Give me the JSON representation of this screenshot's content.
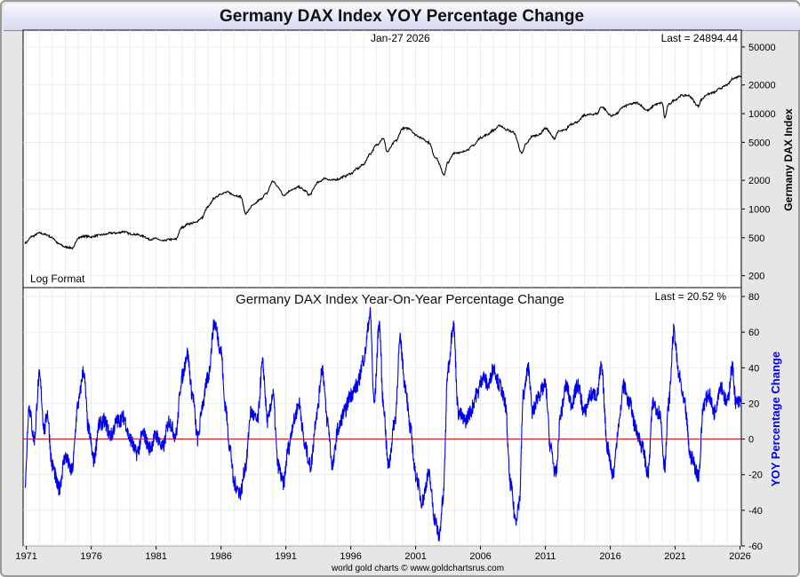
{
  "page": {
    "title": "Germany DAX Index YOY Percentage Change",
    "credit": "world gold charts © www.goldchartsrus.com",
    "colors": {
      "price_line": "#000000",
      "yoy_line": "#0000ee",
      "zero_line": "#cc0000",
      "grid": "#dde6ee"
    }
  },
  "chart_data": [
    {
      "type": "line",
      "name": "price-panel",
      "title": "",
      "date_label": "Jan-27  2026",
      "last_label": "Last = 24894.44",
      "format_note": "Log Format",
      "ylabel": "Germany DAX Index",
      "yscale": "log",
      "ylim": [
        150,
        75000
      ],
      "yticks": [
        200,
        500,
        1000,
        2000,
        5000,
        10000,
        20000,
        50000
      ],
      "xlim": [
        1970.75,
        2026.1
      ],
      "series": [
        {
          "name": "Germany DAX Index",
          "x": [
            1970.9,
            1971.5,
            1972.0,
            1972.5,
            1973.0,
            1973.5,
            1974.0,
            1974.6,
            1975.0,
            1975.5,
            1976.0,
            1976.5,
            1977.0,
            1977.5,
            1978.0,
            1978.5,
            1979.0,
            1979.5,
            1980.0,
            1980.5,
            1981.0,
            1981.5,
            1982.0,
            1982.5,
            1983.0,
            1983.5,
            1984.0,
            1984.5,
            1985.0,
            1985.5,
            1986.0,
            1986.5,
            1987.0,
            1987.5,
            1987.9,
            1988.5,
            1989.0,
            1989.5,
            1990.0,
            1990.4,
            1990.8,
            1991.5,
            1992.0,
            1992.5,
            1992.8,
            1993.5,
            1994.0,
            1994.5,
            1995.0,
            1995.5,
            1996.0,
            1996.5,
            1997.0,
            1997.5,
            1998.0,
            1998.5,
            1998.8,
            1999.5,
            2000.0,
            2000.5,
            2001.0,
            2001.5,
            2002.0,
            2002.5,
            2003.2,
            2003.5,
            2004.0,
            2004.5,
            2005.0,
            2005.5,
            2006.0,
            2006.5,
            2007.0,
            2007.5,
            2008.0,
            2008.5,
            2009.2,
            2009.5,
            2010.0,
            2010.5,
            2011.0,
            2011.7,
            2012.0,
            2012.5,
            2013.0,
            2013.5,
            2014.0,
            2014.5,
            2015.0,
            2015.3,
            2016.1,
            2016.5,
            2017.0,
            2017.5,
            2018.0,
            2018.9,
            2019.5,
            2020.0,
            2020.2,
            2020.5,
            2021.0,
            2021.5,
            2022.0,
            2022.8,
            2023.0,
            2023.5,
            2024.0,
            2024.5,
            2025.0,
            2025.5,
            2026.07
          ],
          "values": [
            440,
            520,
            560,
            540,
            500,
            430,
            400,
            390,
            500,
            520,
            510,
            530,
            540,
            560,
            560,
            580,
            550,
            540,
            520,
            480,
            490,
            460,
            480,
            480,
            640,
            700,
            720,
            800,
            1050,
            1300,
            1450,
            1500,
            1400,
            1350,
            900,
            1100,
            1250,
            1450,
            1950,
            1700,
            1400,
            1600,
            1700,
            1550,
            1400,
            1900,
            2100,
            2000,
            2050,
            2200,
            2350,
            2650,
            2950,
            3800,
            4700,
            5500,
            4000,
            5200,
            7000,
            7000,
            6000,
            5500,
            5000,
            3500,
            2300,
            3100,
            3900,
            3900,
            4200,
            4700,
            5600,
            6000,
            6700,
            7500,
            6800,
            6400,
            3800,
            4800,
            5800,
            6000,
            7000,
            5500,
            6500,
            6700,
            7800,
            8200,
            9600,
            9800,
            10000,
            11800,
            9500,
            10000,
            11800,
            12500,
            13000,
            10800,
            12500,
            13000,
            9000,
            12500,
            14000,
            15500,
            15500,
            12000,
            14000,
            16000,
            16700,
            18500,
            20000,
            23500,
            24894.44
          ]
        }
      ]
    },
    {
      "type": "line",
      "name": "yoy-panel",
      "title": "Germany DAX Index Year-On-Year Percentage Change",
      "last_label": "Last = 20.52 %",
      "ylabel": "YOY Percentage Change",
      "ylim": [
        -60,
        85
      ],
      "yticks": [
        -60,
        -40,
        -20,
        0,
        20,
        40,
        60,
        80
      ],
      "x_ticks": [
        "1971",
        "1976",
        "1981",
        "1986",
        "1991",
        "1996",
        "2001",
        "2006",
        "2011",
        "2016",
        "2021",
        "2026"
      ],
      "xlim": [
        1970.75,
        2026.1
      ],
      "series": [
        {
          "name": "YOY Percentage Change",
          "x": [
            1970.9,
            1971.2,
            1971.6,
            1972.0,
            1972.4,
            1972.6,
            1973.0,
            1973.5,
            1974.0,
            1974.5,
            1975.0,
            1975.4,
            1975.8,
            1976.2,
            1976.6,
            1977.0,
            1977.5,
            1978.0,
            1978.5,
            1979.0,
            1979.5,
            1980.0,
            1980.5,
            1981.0,
            1981.5,
            1982.0,
            1982.5,
            1983.0,
            1983.4,
            1983.8,
            1984.2,
            1984.6,
            1985.0,
            1985.5,
            1986.0,
            1986.3,
            1986.7,
            1987.0,
            1987.5,
            1987.9,
            1988.3,
            1988.8,
            1989.2,
            1989.6,
            1990.0,
            1990.4,
            1990.8,
            1991.2,
            1991.6,
            1992.0,
            1992.5,
            1992.9,
            1993.4,
            1993.8,
            1994.2,
            1994.6,
            1995.0,
            1995.5,
            1996.0,
            1996.5,
            1997.0,
            1997.5,
            1997.8,
            1998.2,
            1998.5,
            1998.9,
            1999.4,
            1999.8,
            2000.2,
            2000.6,
            2001.0,
            2001.5,
            2002.0,
            2002.5,
            2002.8,
            2003.1,
            2003.5,
            2003.9,
            2004.3,
            2004.8,
            2005.2,
            2005.7,
            2006.2,
            2006.6,
            2007.0,
            2007.5,
            2007.9,
            2008.3,
            2008.7,
            2009.0,
            2009.3,
            2009.7,
            2010.0,
            2010.5,
            2011.0,
            2011.4,
            2011.8,
            2012.2,
            2012.6,
            2013.0,
            2013.5,
            2014.0,
            2014.5,
            2015.0,
            2015.3,
            2015.8,
            2016.2,
            2016.7,
            2017.0,
            2017.5,
            2018.0,
            2018.5,
            2018.9,
            2019.3,
            2019.8,
            2020.2,
            2020.5,
            2020.9,
            2021.3,
            2021.7,
            2022.2,
            2022.8,
            2023.2,
            2023.6,
            2024.0,
            2024.5,
            2025.0,
            2025.4,
            2025.7,
            2026.07
          ],
          "values": [
            -25,
            18,
            0,
            35,
            5,
            15,
            -15,
            -28,
            -10,
            -18,
            20,
            38,
            5,
            -12,
            8,
            10,
            2,
            10,
            12,
            0,
            -8,
            3,
            -5,
            2,
            -5,
            10,
            2,
            35,
            48,
            25,
            0,
            20,
            35,
            65,
            50,
            20,
            -5,
            -25,
            -30,
            -15,
            15,
            10,
            42,
            10,
            25,
            -15,
            -25,
            -5,
            10,
            20,
            -5,
            -15,
            15,
            40,
            10,
            -15,
            5,
            15,
            25,
            30,
            45,
            70,
            20,
            65,
            20,
            -15,
            10,
            55,
            30,
            5,
            -20,
            -35,
            -20,
            -45,
            -55,
            -35,
            40,
            65,
            15,
            10,
            15,
            25,
            35,
            30,
            40,
            30,
            20,
            -25,
            -45,
            -35,
            25,
            40,
            15,
            25,
            30,
            -5,
            -20,
            15,
            30,
            20,
            30,
            15,
            25,
            25,
            40,
            -5,
            -20,
            10,
            30,
            20,
            5,
            -5,
            -20,
            20,
            15,
            -15,
            20,
            60,
            35,
            20,
            -10,
            -20,
            20,
            25,
            15,
            30,
            20,
            40,
            20,
            20.52
          ]
        }
      ]
    }
  ]
}
